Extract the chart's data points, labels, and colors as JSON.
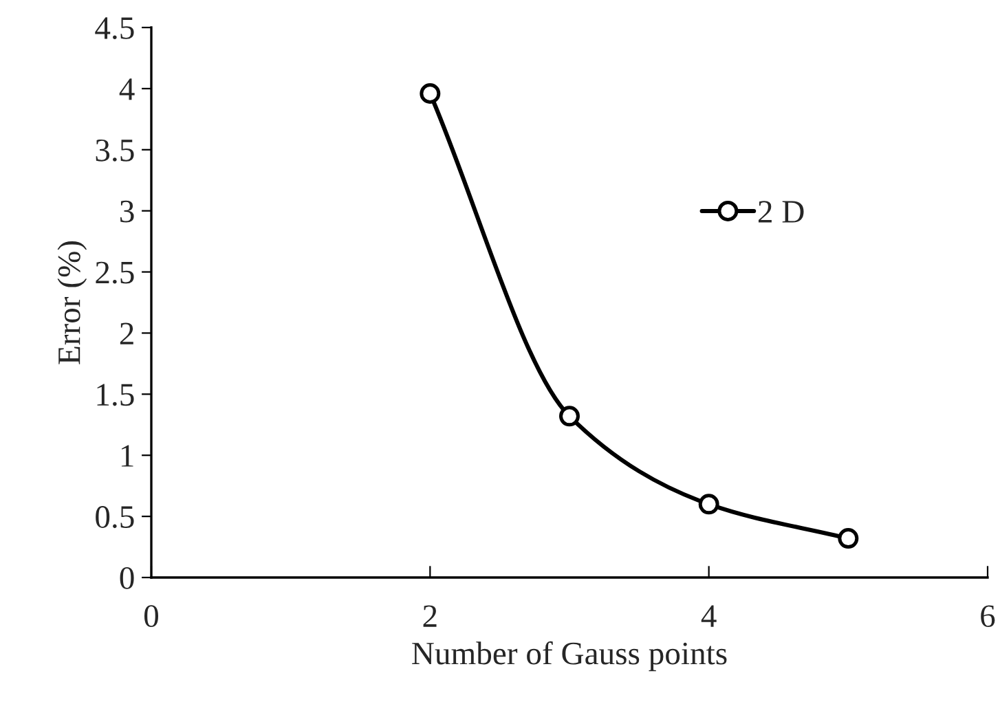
{
  "chart_data": {
    "type": "line",
    "xlabel": "Number of Gauss points",
    "ylabel": "Error (%)",
    "x": [
      2,
      3,
      4,
      5
    ],
    "series": [
      {
        "name": "2 D",
        "color": "#000000",
        "values": [
          3.96,
          1.32,
          0.6,
          0.32
        ]
      }
    ],
    "xlim": [
      0,
      6
    ],
    "xticks": [
      0,
      2,
      4,
      6
    ],
    "ylim": [
      0,
      4.5
    ],
    "yticks": [
      0,
      0.5,
      1,
      1.5,
      2,
      2.5,
      3,
      3.5,
      4,
      4.5
    ],
    "marker": "circle",
    "line_style": "solid",
    "grid": false,
    "legend": "right"
  }
}
